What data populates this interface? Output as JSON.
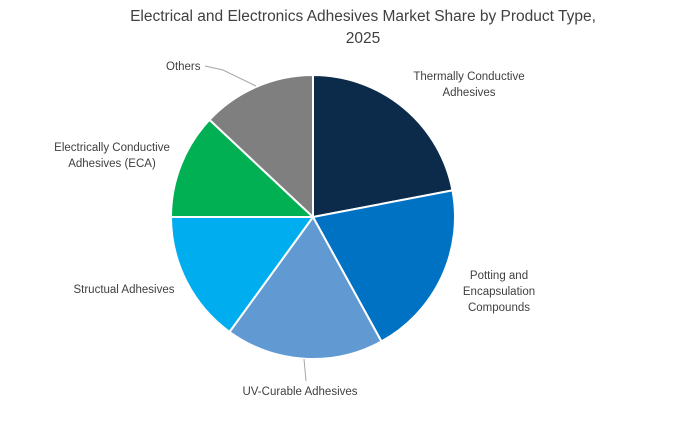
{
  "chart_title": "Electrical and Electronics Adhesives Market Share by Product Type, 2025",
  "title_lines": [
    "Electrical and Electronics Adhesives Market Share by Product Type,",
    "2025"
  ],
  "chart_data": {
    "type": "pie",
    "title": "Electrical and Electronics Adhesives Market Share by Product Type, 2025",
    "categories": [
      "Thermally Conductive Adhesives",
      "Potting and Encapsulation Compounds",
      "UV-Curable Adhesives",
      "Structual Adhesives",
      "Electrically Conductive Adhesives (ECA)",
      "Others"
    ],
    "values": [
      22,
      20,
      18,
      15,
      12,
      13
    ],
    "unit": "percent (estimated from slice angles; no numeric labels shown)",
    "colors": [
      "#0c2b4a",
      "#0072c3",
      "#619ad3",
      "#00aeef",
      "#00b052",
      "#7f7f7f"
    ],
    "slice_border_color": "#ffffff",
    "start_angle_deg": 0,
    "direction": "clockwise",
    "legend": "none",
    "labels_position": "outside"
  },
  "labels": {
    "thermally": {
      "lines": [
        "Thermally Conductive",
        "Adhesives"
      ]
    },
    "potting": {
      "lines": [
        "Potting and",
        "Encapsulation",
        "Compounds"
      ]
    },
    "uv": {
      "lines": [
        "UV-Curable Adhesives"
      ]
    },
    "structural": {
      "lines": [
        "Structual Adhesives"
      ]
    },
    "eca": {
      "lines": [
        "Electrically Conductive",
        "Adhesives (ECA)"
      ]
    },
    "others": {
      "lines": [
        "Others"
      ]
    }
  },
  "colors": {
    "title_text": "#404040",
    "label_text": "#404040",
    "leader_line": "#a6a6a6",
    "background": "#ffffff"
  }
}
